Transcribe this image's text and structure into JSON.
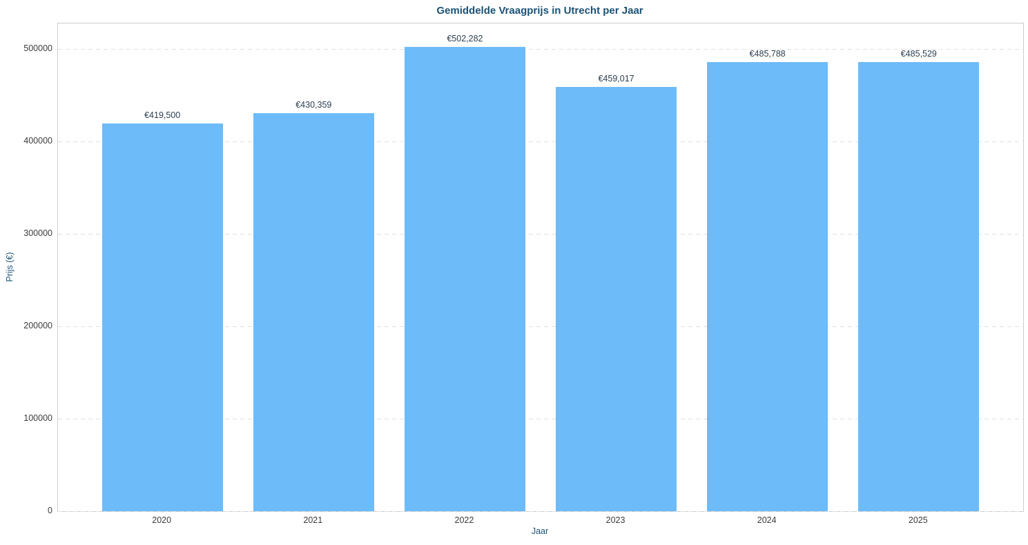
{
  "chart_data": {
    "type": "bar",
    "title": "Gemiddelde Vraagprijs in Utrecht per Jaar",
    "xlabel": "Jaar",
    "ylabel": "Prijs (€)",
    "categories": [
      "2020",
      "2021",
      "2022",
      "2023",
      "2024",
      "2025"
    ],
    "values": [
      419500,
      430359,
      502282,
      459017,
      485788,
      485529
    ],
    "bar_labels": [
      "€419,500",
      "€430,359",
      "€502,282",
      "€459,017",
      "€485,788",
      "€485,529"
    ],
    "yticks": [
      0,
      100000,
      200000,
      300000,
      400000,
      500000
    ],
    "ytick_labels": [
      "0",
      "100000",
      "200000",
      "300000",
      "400000",
      "500000"
    ],
    "ylim": [
      0,
      527400
    ],
    "grid": "horizontal-dashed",
    "legend": "none",
    "colors": {
      "bar": "#6dbbf8",
      "title": "#1a5276",
      "axis_label": "#1a5276",
      "value_label": "#2c3e50",
      "tick_label": "#3b3b3b",
      "spine": "#cccccc",
      "gridline": "#e0e0e0",
      "background": "#ffffff"
    }
  }
}
